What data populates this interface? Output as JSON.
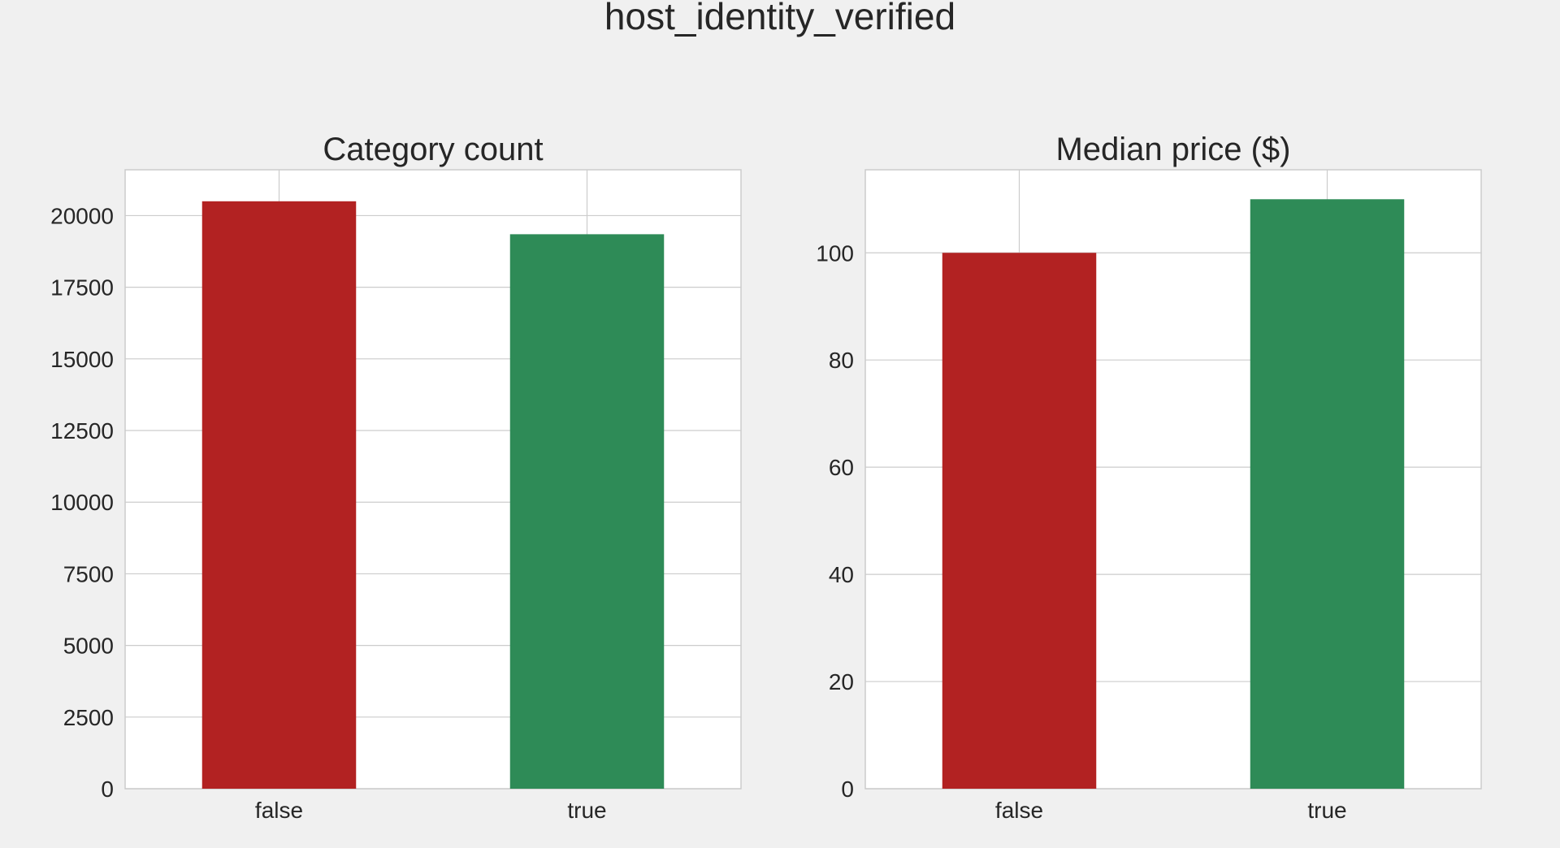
{
  "figure": {
    "suptitle": "host_identity_verified"
  },
  "chart_data": [
    {
      "type": "bar",
      "title": "Category count",
      "categories": [
        "false",
        "true"
      ],
      "values": [
        20500,
        19350
      ],
      "colors": [
        "#b22222",
        "#2e8b57"
      ],
      "ylim": [
        0,
        21600
      ],
      "yticks": [
        0,
        2500,
        5000,
        7500,
        10000,
        12500,
        15000,
        17500,
        20000
      ],
      "grid": true,
      "xlabel": "",
      "ylabel": ""
    },
    {
      "type": "bar",
      "title": "Median price ($)",
      "categories": [
        "false",
        "true"
      ],
      "values": [
        100,
        110
      ],
      "colors": [
        "#b22222",
        "#2e8b57"
      ],
      "ylim": [
        0,
        115.5
      ],
      "yticks": [
        0,
        20,
        40,
        60,
        80,
        100
      ],
      "grid": true,
      "xlabel": "",
      "ylabel": ""
    }
  ]
}
